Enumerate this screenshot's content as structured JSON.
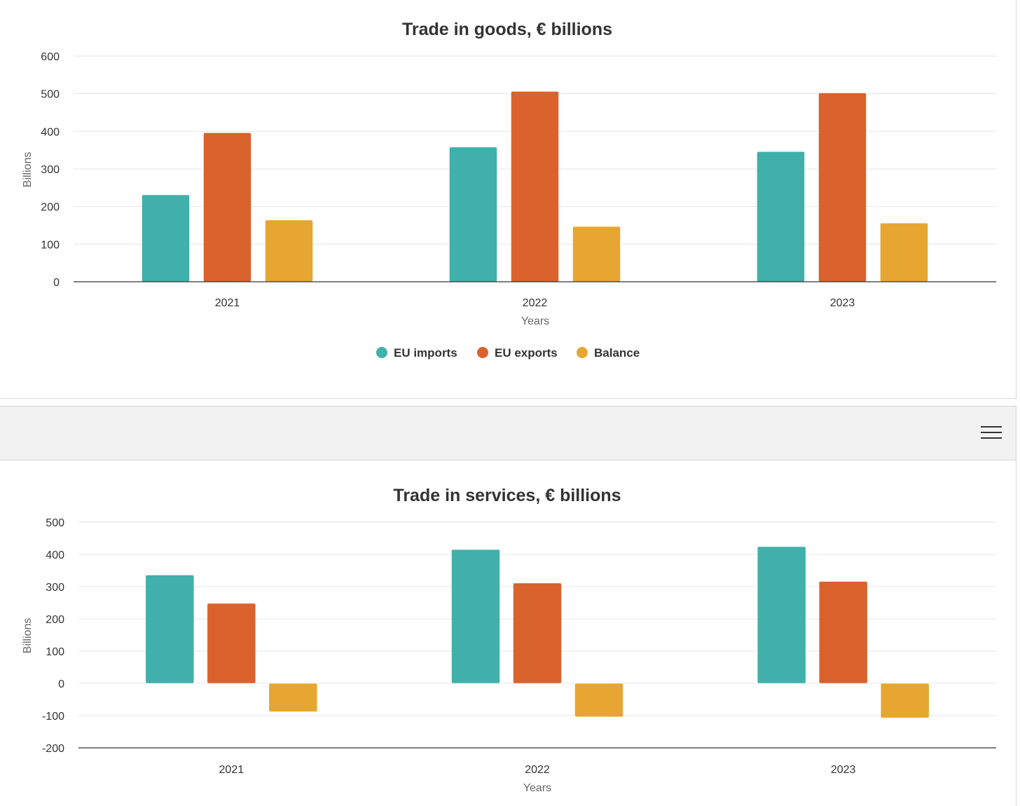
{
  "colors": {
    "imports": "#41b0aa",
    "exports": "#d9622d",
    "balance": "#e6a631"
  },
  "toolbar": {
    "menu_icon": "hamburger-icon"
  },
  "chart_data": [
    {
      "type": "bar",
      "title": "Trade in goods, € billions",
      "xlabel": "Years",
      "ylabel": "Billions",
      "categories": [
        "2021",
        "2022",
        "2023"
      ],
      "ylim": [
        0,
        600
      ],
      "yticks": [
        0,
        100,
        200,
        300,
        400,
        500,
        600
      ],
      "grid": true,
      "legend": "bottom-center",
      "series": [
        {
          "name": "EU imports",
          "values": [
            231,
            358,
            346
          ]
        },
        {
          "name": "EU exports",
          "values": [
            396,
            506,
            502
          ]
        },
        {
          "name": "Balance",
          "values": [
            164,
            147,
            156
          ]
        }
      ]
    },
    {
      "type": "bar",
      "title": "Trade in services, € billions",
      "xlabel": "Years",
      "ylabel": "Billions",
      "categories": [
        "2021",
        "2022",
        "2023"
      ],
      "ylim": [
        -200,
        500
      ],
      "yticks": [
        -200,
        -100,
        0,
        100,
        200,
        300,
        400,
        500
      ],
      "grid": true,
      "series": [
        {
          "name": "EU imports",
          "values": [
            336,
            415,
            424
          ]
        },
        {
          "name": "EU exports",
          "values": [
            248,
            311,
            316
          ]
        },
        {
          "name": "Balance",
          "values": [
            -88,
            -104,
            -107
          ]
        }
      ]
    }
  ]
}
